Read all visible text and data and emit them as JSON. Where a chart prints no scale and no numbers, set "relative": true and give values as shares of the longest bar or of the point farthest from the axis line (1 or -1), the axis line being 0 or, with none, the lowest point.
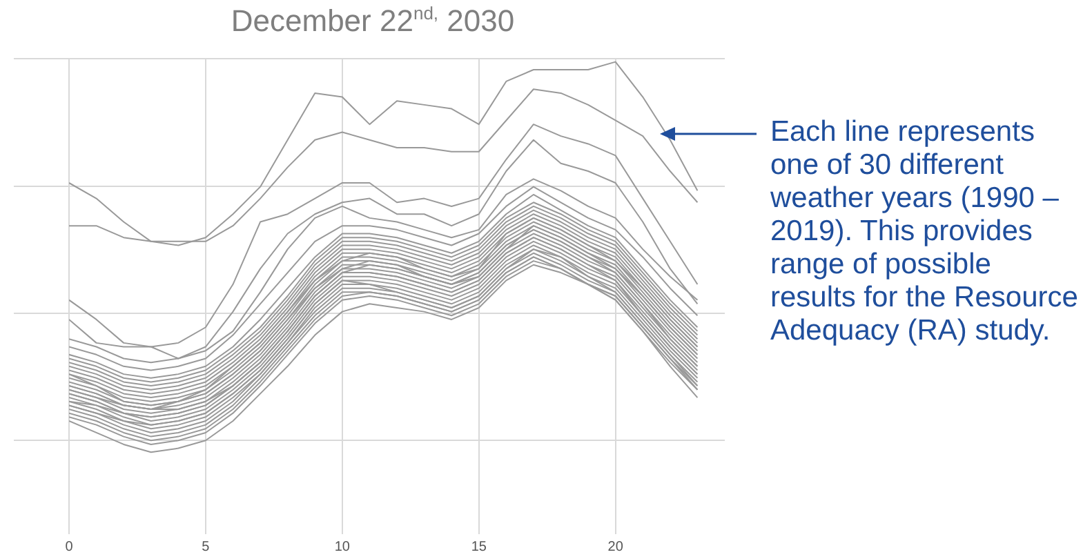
{
  "chart_data": {
    "type": "line",
    "title": "December 22$^{nd,}$ 2030",
    "relative": true,
    "grid": true,
    "legend": false,
    "marker": "none",
    "line_style": "solid",
    "tick_labels": "x",
    "x": [
      0,
      1,
      2,
      3,
      4,
      5,
      6,
      7,
      8,
      9,
      10,
      11,
      12,
      13,
      14,
      15,
      16,
      17,
      18,
      19,
      20,
      21,
      22,
      23
    ],
    "xlim": [
      0,
      24
    ],
    "xticks": [
      0,
      5,
      10,
      15,
      20
    ],
    "annotations": [
      "Each line represents one of 30 different weather years (1990 – 2019). This provides range of possible results for the Resource Adequacy (RA) study."
    ],
    "series": [
      {
        "color": "#999999",
        "values": [
          0.69,
          0.65,
          0.59,
          0.54,
          0.53,
          0.55,
          0.61,
          0.68,
          0.8,
          0.92,
          0.91,
          0.84,
          0.9,
          0.89,
          0.88,
          0.84,
          0.95,
          0.98,
          0.98,
          0.98,
          1.0,
          0.91,
          0.8,
          0.67
        ]
      },
      {
        "color": "#999999",
        "values": [
          0.58,
          0.58,
          0.55,
          0.54,
          0.54,
          0.54,
          0.58,
          0.65,
          0.73,
          0.8,
          0.82,
          0.8,
          0.78,
          0.78,
          0.77,
          0.77,
          0.85,
          0.93,
          0.92,
          0.89,
          0.85,
          0.81,
          0.72,
          0.64
        ]
      },
      {
        "color": "#999999",
        "values": [
          0.39,
          0.34,
          0.28,
          0.27,
          0.28,
          0.32,
          0.43,
          0.59,
          0.61,
          0.65,
          0.69,
          0.69,
          0.64,
          0.65,
          0.63,
          0.65,
          0.75,
          0.84,
          0.81,
          0.79,
          0.76,
          0.65,
          0.54,
          0.43
        ]
      },
      {
        "color": "#999999",
        "values": [
          0.34,
          0.28,
          0.27,
          0.27,
          0.24,
          0.27,
          0.36,
          0.47,
          0.56,
          0.61,
          0.64,
          0.65,
          0.61,
          0.61,
          0.58,
          0.61,
          0.72,
          0.8,
          0.74,
          0.72,
          0.69,
          0.59,
          0.47,
          0.38
        ]
      },
      {
        "color": "#999999",
        "values": [
          0.08,
          0.05,
          0.02,
          0,
          0.01,
          0.03,
          0.08,
          0.15,
          0.22,
          0.3,
          0.36,
          0.38,
          0.37,
          0.36,
          0.34,
          0.37,
          0.44,
          0.48,
          0.46,
          0.43,
          0.4,
          0.32,
          0.24,
          0.16
        ]
      },
      {
        "color": "#999999",
        "values": [
          0.09,
          0.07,
          0.04,
          0.02,
          0.03,
          0.05,
          0.1,
          0.17,
          0.25,
          0.33,
          0.39,
          0.4,
          0.39,
          0.37,
          0.35,
          0.38,
          0.45,
          0.49,
          0.47,
          0.43,
          0.39,
          0.31,
          0.22,
          0.14
        ]
      },
      {
        "color": "#999999",
        "values": [
          0.1,
          0.08,
          0.05,
          0.03,
          0.04,
          0.06,
          0.11,
          0.18,
          0.26,
          0.34,
          0.4,
          0.41,
          0.4,
          0.38,
          0.36,
          0.39,
          0.46,
          0.5,
          0.47,
          0.43,
          0.39,
          0.31,
          0.23,
          0.16
        ]
      },
      {
        "color": "#999999",
        "values": [
          0.11,
          0.09,
          0.06,
          0.04,
          0.05,
          0.07,
          0.12,
          0.19,
          0.27,
          0.35,
          0.41,
          0.41,
          0.4,
          0.38,
          0.36,
          0.39,
          0.46,
          0.5,
          0.47,
          0.43,
          0.4,
          0.32,
          0.24,
          0.17
        ]
      },
      {
        "color": "#999999",
        "values": [
          0.12,
          0.1,
          0.07,
          0.05,
          0.06,
          0.08,
          0.13,
          0.2,
          0.28,
          0.36,
          0.42,
          0.42,
          0.41,
          0.39,
          0.37,
          0.4,
          0.47,
          0.51,
          0.48,
          0.44,
          0.41,
          0.33,
          0.25,
          0.18
        ]
      },
      {
        "color": "#999999",
        "values": [
          0.13,
          0.11,
          0.08,
          0.06,
          0.07,
          0.09,
          0.14,
          0.2,
          0.28,
          0.37,
          0.43,
          0.43,
          0.42,
          0.4,
          0.38,
          0.41,
          0.48,
          0.52,
          0.49,
          0.45,
          0.42,
          0.34,
          0.26,
          0.19
        ]
      },
      {
        "color": "#999999",
        "values": [
          0.12,
          0.1,
          0.08,
          0.07,
          0.08,
          0.1,
          0.15,
          0.21,
          0.29,
          0.38,
          0.44,
          0.43,
          0.41,
          0.39,
          0.37,
          0.4,
          0.47,
          0.52,
          0.5,
          0.45,
          0.41,
          0.33,
          0.25,
          0.17
        ]
      },
      {
        "color": "#999999",
        "values": [
          0.14,
          0.12,
          0.09,
          0.07,
          0.08,
          0.1,
          0.15,
          0.21,
          0.29,
          0.38,
          0.44,
          0.44,
          0.43,
          0.41,
          0.39,
          0.42,
          0.49,
          0.53,
          0.5,
          0.46,
          0.43,
          0.35,
          0.27,
          0.2
        ]
      },
      {
        "color": "#999999",
        "values": [
          0.15,
          0.13,
          0.1,
          0.08,
          0.09,
          0.11,
          0.16,
          0.22,
          0.3,
          0.39,
          0.45,
          0.45,
          0.44,
          0.42,
          0.4,
          0.43,
          0.5,
          0.54,
          0.51,
          0.47,
          0.44,
          0.36,
          0.28,
          0.21
        ]
      },
      {
        "color": "#999999",
        "values": [
          0.13,
          0.12,
          0.1,
          0.09,
          0.1,
          0.12,
          0.17,
          0.23,
          0.31,
          0.4,
          0.46,
          0.46,
          0.45,
          0.43,
          0.41,
          0.44,
          0.51,
          0.55,
          0.52,
          0.48,
          0.44,
          0.35,
          0.27,
          0.2
        ]
      },
      {
        "color": "#999999",
        "values": [
          0.15,
          0.13,
          0.1,
          0.09,
          0.1,
          0.12,
          0.17,
          0.23,
          0.31,
          0.4,
          0.46,
          0.46,
          0.45,
          0.43,
          0.41,
          0.44,
          0.51,
          0.55,
          0.52,
          0.48,
          0.45,
          0.37,
          0.29,
          0.22
        ]
      },
      {
        "color": "#999999",
        "values": [
          0.16,
          0.14,
          0.11,
          0.1,
          0.11,
          0.13,
          0.18,
          0.24,
          0.32,
          0.41,
          0.47,
          0.47,
          0.46,
          0.44,
          0.42,
          0.45,
          0.52,
          0.56,
          0.53,
          0.49,
          0.46,
          0.38,
          0.3,
          0.23
        ]
      },
      {
        "color": "#999999",
        "values": [
          0.17,
          0.15,
          0.12,
          0.11,
          0.11,
          0.13,
          0.17,
          0.23,
          0.31,
          0.4,
          0.46,
          0.48,
          0.47,
          0.45,
          0.43,
          0.46,
          0.53,
          0.57,
          0.54,
          0.5,
          0.46,
          0.38,
          0.29,
          0.22
        ]
      },
      {
        "color": "#999999",
        "values": [
          0.17,
          0.15,
          0.12,
          0.11,
          0.12,
          0.14,
          0.19,
          0.25,
          0.33,
          0.42,
          0.48,
          0.48,
          0.47,
          0.45,
          0.43,
          0.46,
          0.53,
          0.57,
          0.54,
          0.5,
          0.47,
          0.39,
          0.31,
          0.24
        ]
      },
      {
        "color": "#999999",
        "values": [
          0.16,
          0.14,
          0.12,
          0.11,
          0.13,
          0.15,
          0.2,
          0.26,
          0.34,
          0.42,
          0.47,
          0.49,
          0.48,
          0.45,
          0.43,
          0.45,
          0.52,
          0.58,
          0.55,
          0.51,
          0.47,
          0.4,
          0.32,
          0.25
        ]
      },
      {
        "color": "#999999",
        "values": [
          0.18,
          0.16,
          0.13,
          0.12,
          0.13,
          0.15,
          0.2,
          0.26,
          0.34,
          0.43,
          0.49,
          0.49,
          0.48,
          0.46,
          0.44,
          0.47,
          0.54,
          0.58,
          0.55,
          0.51,
          0.48,
          0.4,
          0.32,
          0.25
        ]
      },
      {
        "color": "#999999",
        "values": [
          0.19,
          0.17,
          0.14,
          0.13,
          0.14,
          0.16,
          0.21,
          0.27,
          0.35,
          0.44,
          0.5,
          0.5,
          0.49,
          0.47,
          0.45,
          0.48,
          0.55,
          0.59,
          0.56,
          0.52,
          0.49,
          0.41,
          0.33,
          0.26
        ]
      },
      {
        "color": "#999999",
        "values": [
          0.2,
          0.17,
          0.13,
          0.12,
          0.13,
          0.16,
          0.22,
          0.28,
          0.36,
          0.44,
          0.49,
          0.51,
          0.5,
          0.47,
          0.45,
          0.47,
          0.56,
          0.6,
          0.57,
          0.53,
          0.49,
          0.42,
          0.34,
          0.27
        ]
      },
      {
        "color": "#999999",
        "values": [
          0.2,
          0.18,
          0.15,
          0.14,
          0.15,
          0.17,
          0.22,
          0.28,
          0.36,
          0.45,
          0.51,
          0.51,
          0.5,
          0.48,
          0.46,
          0.49,
          0.56,
          0.6,
          0.57,
          0.53,
          0.5,
          0.42,
          0.34,
          0.27
        ]
      },
      {
        "color": "#999999",
        "values": [
          0.21,
          0.19,
          0.16,
          0.15,
          0.16,
          0.18,
          0.23,
          0.29,
          0.37,
          0.46,
          0.52,
          0.52,
          0.51,
          0.49,
          0.47,
          0.5,
          0.57,
          0.61,
          0.58,
          0.54,
          0.51,
          0.43,
          0.35,
          0.28
        ]
      },
      {
        "color": "#999999",
        "values": [
          0.22,
          0.2,
          0.17,
          0.16,
          0.17,
          0.19,
          0.24,
          0.3,
          0.38,
          0.47,
          0.53,
          0.53,
          0.52,
          0.5,
          0.48,
          0.51,
          0.58,
          0.62,
          0.59,
          0.55,
          0.52,
          0.44,
          0.36,
          0.29
        ]
      },
      {
        "color": "#999999",
        "values": [
          0.23,
          0.21,
          0.18,
          0.17,
          0.18,
          0.2,
          0.25,
          0.31,
          0.39,
          0.48,
          0.54,
          0.54,
          0.53,
          0.51,
          0.49,
          0.52,
          0.59,
          0.63,
          0.6,
          0.56,
          0.53,
          0.45,
          0.37,
          0.3
        ]
      },
      {
        "color": "#999999",
        "values": [
          0.24,
          0.22,
          0.19,
          0.18,
          0.19,
          0.21,
          0.26,
          0.32,
          0.4,
          0.49,
          0.55,
          0.55,
          0.54,
          0.52,
          0.5,
          0.53,
          0.6,
          0.64,
          0.61,
          0.57,
          0.54,
          0.46,
          0.38,
          0.31
        ]
      },
      {
        "color": "#999999",
        "values": [
          0.25,
          0.23,
          0.2,
          0.19,
          0.2,
          0.22,
          0.27,
          0.34,
          0.42,
          0.5,
          0.56,
          0.56,
          0.55,
          0.53,
          0.51,
          0.54,
          0.61,
          0.66,
          0.62,
          0.58,
          0.55,
          0.47,
          0.39,
          0.32
        ]
      },
      {
        "color": "#999999",
        "values": [
          0.27,
          0.25,
          0.22,
          0.21,
          0.22,
          0.24,
          0.3,
          0.38,
          0.46,
          0.54,
          0.58,
          0.58,
          0.57,
          0.55,
          0.53,
          0.56,
          0.63,
          0.68,
          0.64,
          0.6,
          0.57,
          0.5,
          0.42,
          0.35
        ]
      },
      {
        "color": "#999999",
        "values": [
          0.29,
          0.27,
          0.24,
          0.23,
          0.24,
          0.26,
          0.31,
          0.41,
          0.52,
          0.6,
          0.63,
          0.6,
          0.59,
          0.57,
          0.55,
          0.57,
          0.66,
          0.7,
          0.67,
          0.63,
          0.6,
          0.52,
          0.45,
          0.39
        ]
      }
    ]
  }
}
